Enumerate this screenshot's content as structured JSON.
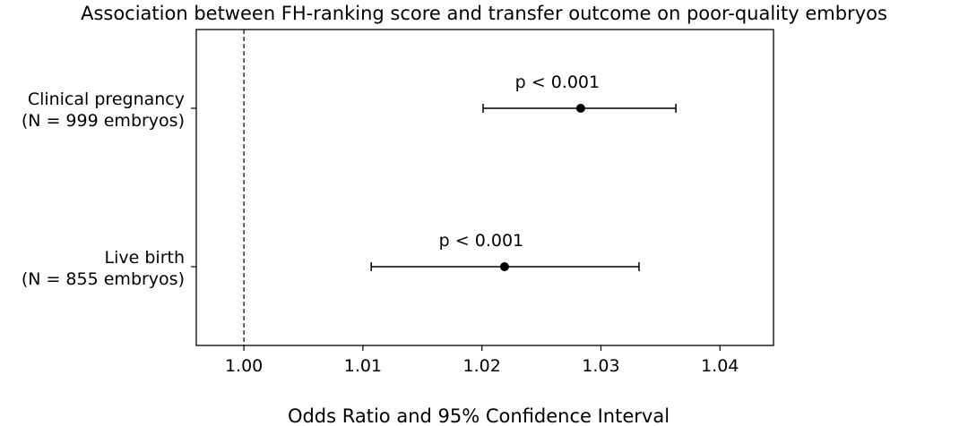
{
  "chart_data": {
    "type": "forest",
    "title": "Association between FH-ranking score and transfer outcome on poor-quality embryos",
    "xlabel": "Odds Ratio and 95% Confidence Interval",
    "ylabel": "",
    "xlim": [
      0.996,
      1.0445
    ],
    "xticks": [
      "1.00",
      "1.01",
      "1.02",
      "1.03",
      "1.04"
    ],
    "xtick_values": [
      1.0,
      1.01,
      1.02,
      1.03,
      1.04
    ],
    "reference_line": 1.0,
    "grid": false,
    "rows": [
      {
        "label_line1": "Clinical pregnancy",
        "label_line2": "(N = 999 embryos)",
        "or": 1.0283,
        "ci_low": 1.0201,
        "ci_high": 1.0363,
        "annotation": "p < 0.001"
      },
      {
        "label_line1": "Live birth",
        "label_line2": "(N = 855 embryos)",
        "or": 1.0219,
        "ci_low": 1.0107,
        "ci_high": 1.0332,
        "annotation": "p < 0.001"
      }
    ]
  }
}
